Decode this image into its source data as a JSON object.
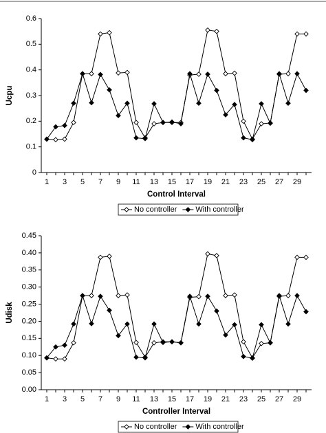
{
  "chart_data": [
    {
      "type": "line",
      "x_label": "Control Interval",
      "y_label": "Ucpu",
      "categories": [
        1,
        null,
        3,
        null,
        5,
        null,
        7,
        null,
        9,
        null,
        11,
        null,
        13,
        null,
        15,
        null,
        17,
        null,
        19,
        null,
        21,
        null,
        23,
        null,
        25,
        null,
        27,
        null,
        29,
        null
      ],
      "ylim": [
        0,
        0.6
      ],
      "yticks": [
        0,
        0.1,
        0.2,
        0.3,
        0.4,
        0.5,
        0.6
      ],
      "series": [
        {
          "name": "No controller",
          "color": "#000000",
          "marker_fill": "#ffffff",
          "values": [
            0.13,
            0.128,
            0.13,
            0.195,
            0.385,
            0.385,
            0.54,
            0.545,
            0.388,
            0.39,
            0.195,
            0.135,
            0.19,
            0.195,
            0.195,
            0.195,
            0.38,
            0.383,
            0.555,
            0.55,
            0.385,
            0.387,
            0.2,
            0.13,
            0.19,
            0.193,
            0.383,
            0.385,
            0.54,
            0.54
          ]
        },
        {
          "name": "With controller",
          "color": "#000000",
          "marker_fill": "#000000",
          "values": [
            0.13,
            0.178,
            0.183,
            0.27,
            0.385,
            0.272,
            0.382,
            0.322,
            0.222,
            0.27,
            0.135,
            0.132,
            0.268,
            0.195,
            0.197,
            0.19,
            0.385,
            0.27,
            0.383,
            0.32,
            0.225,
            0.265,
            0.135,
            0.128,
            0.268,
            0.192,
            0.385,
            0.27,
            0.385,
            0.32
          ]
        }
      ]
    },
    {
      "type": "line",
      "x_label": "Controller Interval",
      "y_label": "Udisk",
      "categories": [
        1,
        null,
        3,
        null,
        5,
        null,
        7,
        null,
        9,
        null,
        11,
        null,
        13,
        null,
        15,
        null,
        17,
        null,
        19,
        null,
        21,
        null,
        23,
        null,
        25,
        null,
        27,
        null,
        29,
        null
      ],
      "ylim": [
        0,
        0.45
      ],
      "yticks": [
        {
          "value": 0,
          "label": "0.00"
        },
        {
          "value": 0.05,
          "label": "0.05"
        },
        {
          "value": 0.1,
          "label": "0.10"
        },
        {
          "value": 0.15,
          "label": "0.15"
        },
        {
          "value": 0.2,
          "label": "0.20"
        },
        {
          "value": 0.25,
          "label": "0.25"
        },
        {
          "value": 0.3,
          "label": "0.30"
        },
        {
          "value": 0.35,
          "label": "0.35"
        },
        {
          "value": 0.4,
          "label": "0.40"
        },
        {
          "value": 0.45,
          "label": "0.45"
        }
      ],
      "series": [
        {
          "name": "No controller",
          "color": "#000000",
          "marker_fill": "#ffffff",
          "values": [
            0.093,
            0.09,
            0.09,
            0.137,
            0.275,
            0.275,
            0.387,
            0.39,
            0.275,
            0.277,
            0.138,
            0.095,
            0.137,
            0.14,
            0.14,
            0.137,
            0.27,
            0.272,
            0.397,
            0.392,
            0.275,
            0.277,
            0.14,
            0.093,
            0.135,
            0.137,
            0.273,
            0.275,
            0.387,
            0.387
          ]
        },
        {
          "name": "With controller",
          "color": "#000000",
          "marker_fill": "#000000",
          "values": [
            0.093,
            0.125,
            0.13,
            0.192,
            0.275,
            0.193,
            0.273,
            0.232,
            0.158,
            0.192,
            0.095,
            0.093,
            0.192,
            0.138,
            0.14,
            0.137,
            0.273,
            0.192,
            0.273,
            0.23,
            0.16,
            0.19,
            0.097,
            0.092,
            0.19,
            0.137,
            0.275,
            0.192,
            0.275,
            0.228
          ]
        }
      ]
    }
  ]
}
